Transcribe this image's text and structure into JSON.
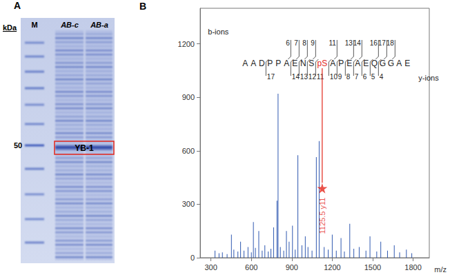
{
  "panel_labels": [
    "A",
    "B"
  ],
  "panel_a": {
    "unit": "kDa",
    "lanes": [
      "M",
      "AB-c",
      "AB-a"
    ],
    "marker_label": "50",
    "band_label": "YB-1"
  },
  "chart_data": {
    "type": "bar",
    "x_label": "m/z",
    "xlim": [
      220,
      1920
    ],
    "xticks": [
      300,
      600,
      900,
      1200,
      1500,
      1800
    ],
    "ylim": [
      0,
      1400
    ],
    "yticks": [
      0,
      300,
      600,
      900,
      1200
    ],
    "grid": false,
    "color": "#2f58b0",
    "x": [
      330,
      360,
      385,
      420,
      452,
      470,
      500,
      520,
      545,
      575,
      600,
      615,
      630,
      655,
      680,
      700,
      725,
      745,
      765,
      790,
      798,
      815,
      840,
      860,
      880,
      905,
      925,
      945,
      975,
      1000,
      1020,
      1050,
      1082,
      1103,
      1140,
      1170,
      1200,
      1230,
      1265,
      1290,
      1330,
      1360,
      1400,
      1450,
      1480,
      1530,
      1560,
      1610,
      1660,
      1700,
      1750,
      1790
    ],
    "values": [
      40,
      25,
      30,
      20,
      130,
      45,
      35,
      90,
      40,
      60,
      30,
      200,
      55,
      150,
      40,
      70,
      35,
      50,
      170,
      320,
      920,
      60,
      40,
      150,
      90,
      180,
      45,
      575,
      70,
      120,
      60,
      40,
      565,
      655,
      60,
      45,
      130,
      40,
      110,
      35,
      190,
      50,
      60,
      40,
      120,
      35,
      90,
      40,
      70,
      30,
      45,
      25
    ],
    "annotations": [
      {
        "x": 1125.5,
        "y": 390,
        "label": "1125.5 y11",
        "marker": "star",
        "color": "#e3261b"
      }
    ],
    "sequence": {
      "residues": [
        "A",
        "A",
        "D",
        "P",
        "P",
        "A",
        "E",
        "N",
        "S",
        "pS",
        "A",
        "P",
        "E",
        "A",
        "E",
        "Q",
        "G",
        "G",
        "A",
        "E"
      ],
      "modified": "pS",
      "modified_color": "#e3261b",
      "b_label": "b-ions",
      "y_label": "y-ions",
      "b_ions": [
        6,
        7,
        8,
        9,
        11,
        13,
        14,
        16,
        17,
        18
      ],
      "y_ions": [
        17,
        14,
        13,
        12,
        11,
        10,
        9,
        8,
        7,
        6,
        5,
        4
      ]
    }
  }
}
